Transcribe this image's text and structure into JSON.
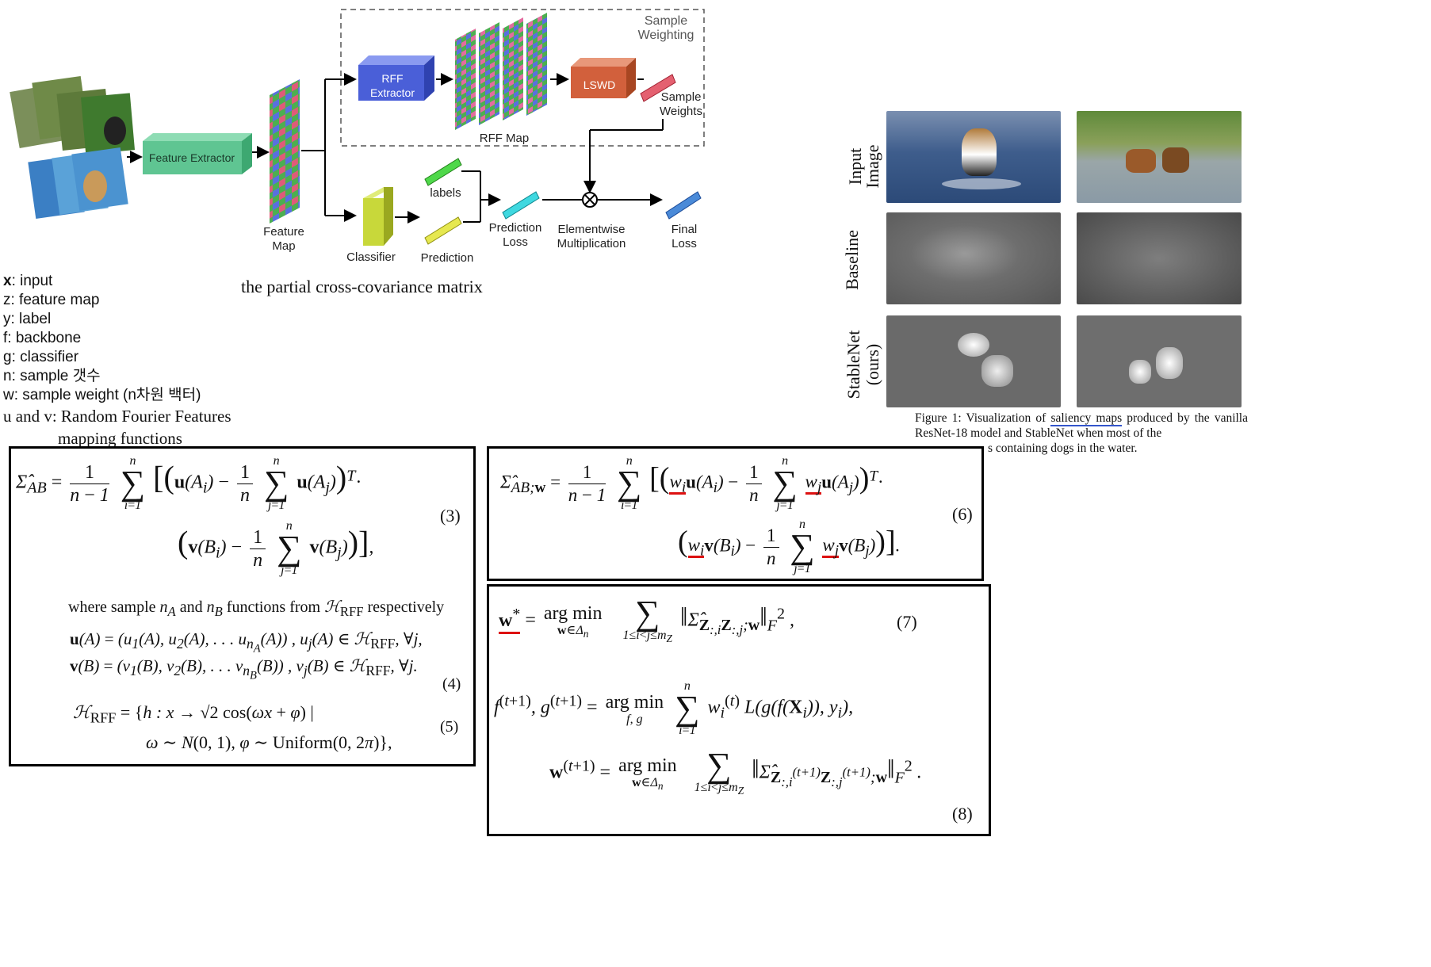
{
  "diagram": {
    "feature_extractor": "Feature Extractor",
    "feature_map": "Feature\nMap",
    "rff_extractor": "RFF\nExtractor",
    "rff_map": "RFF Map",
    "lswd": "LSWD",
    "sample_weights": "Sample\nWeights",
    "sample_weighting": "Sample\nWeighting",
    "classifier": "Classifier",
    "labels": "labels",
    "prediction": "Prediction",
    "prediction_loss": "Prediction\nLoss",
    "elementwise": "Elementwise\nMultiplication",
    "final_loss": "Final\nLoss",
    "caption": "the partial cross-covariance matrix"
  },
  "legend": {
    "x": "x",
    "x_desc": ": input",
    "z": "z: feature map",
    "y": "y: label",
    "f": "f: backbone",
    "g": "g: classifier",
    "n": "n: sample 갯수",
    "w": "w: sample weight (n차원 백터)",
    "uv1": "u and v: Random Fourier Features",
    "uv2": "mapping functions"
  },
  "figure": {
    "row1": "Input\nImage",
    "row2": "Baseline",
    "row3": "StableNet\n(ours)",
    "caption_pre": "Figure 1:  Visualization of ",
    "caption_link": "saliency maps",
    "caption_post": " produced by the vanilla ResNet-18 model and StableNet when most of the",
    "caption_line3": "s containing dogs in the water."
  },
  "equations": {
    "eq3": "(3)",
    "eq4": "(4)",
    "eq5": "(5)",
    "eq6": "(6)",
    "eq7": "(7)",
    "eq8": "(8)",
    "where_text": "where sample n_A and n_B functions from H_RFF respectively"
  },
  "colors": {
    "feature_extractor": "#5fc592",
    "rff_extractor": "#4a5fd8",
    "lswd": "#d2603c",
    "classifier": "#c8d83a",
    "red_underline": "#d11111",
    "link_underline": "#3355cc"
  }
}
